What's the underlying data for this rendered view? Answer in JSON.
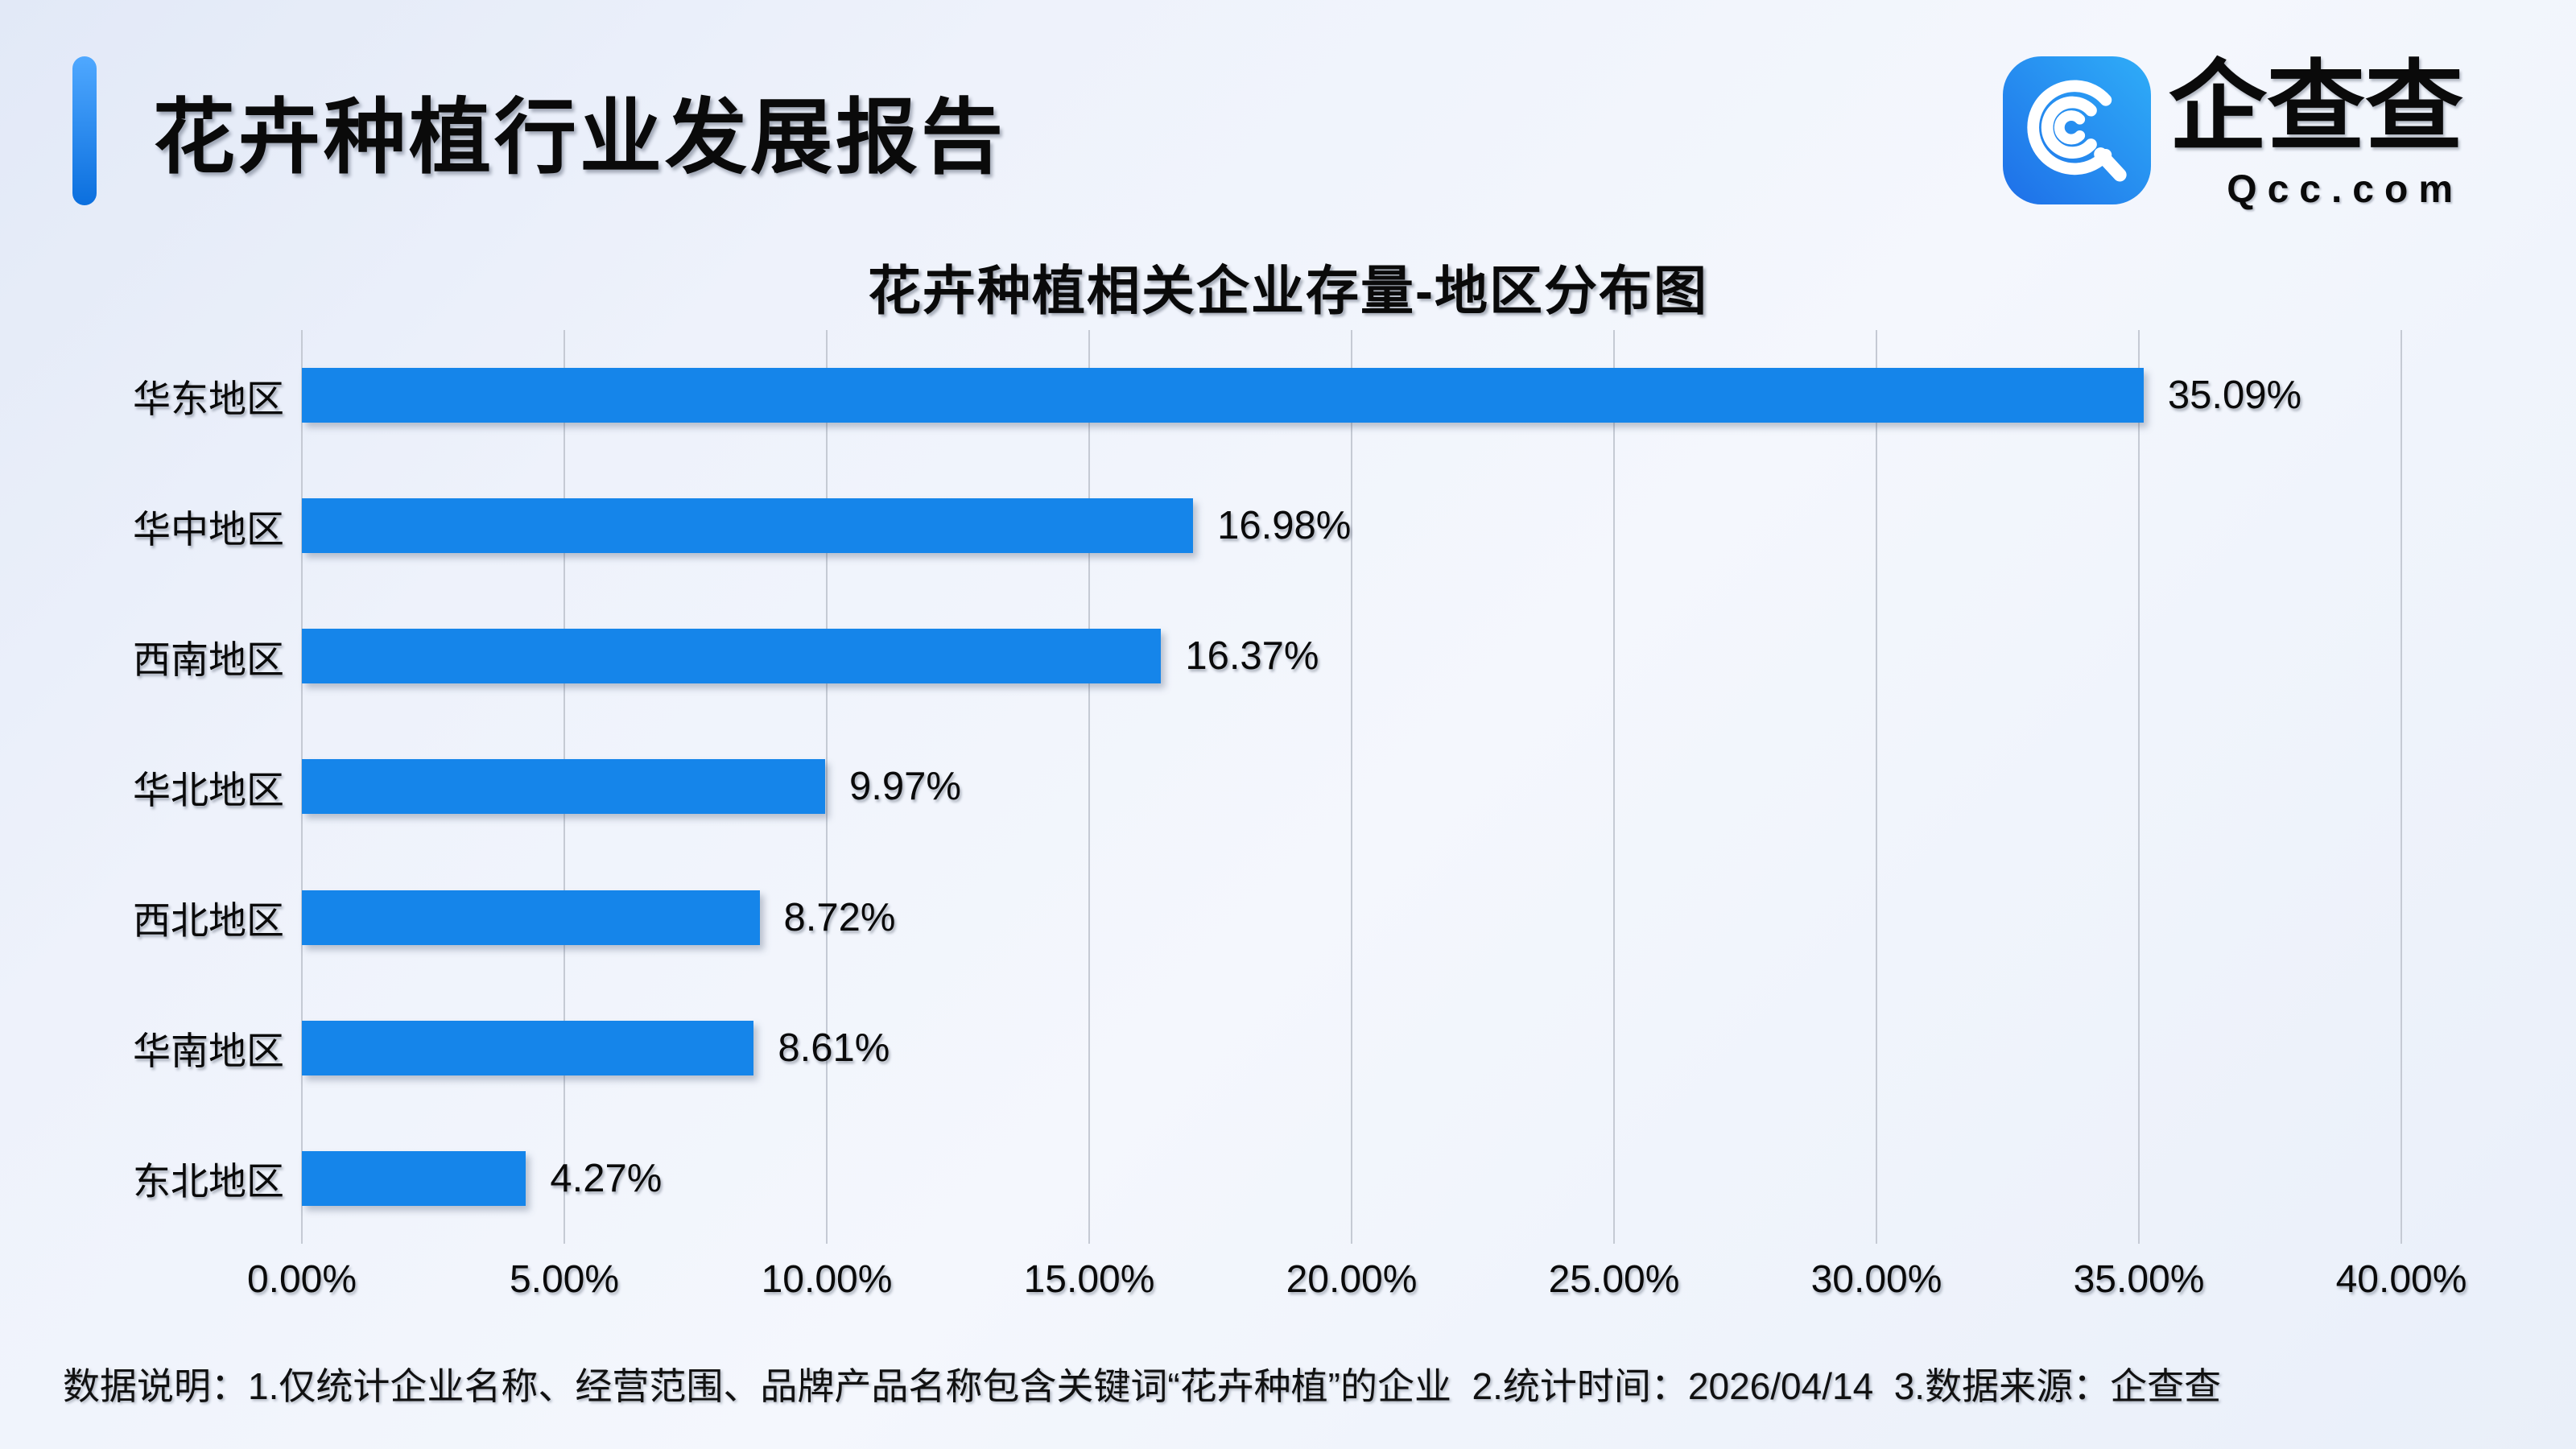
{
  "header": {
    "title": "花卉种植行业发展报告",
    "logo": {
      "brand_cn": "企查查",
      "brand_en": "Qcc.com",
      "icon": "qcc-magnifier-icon"
    }
  },
  "chart_data": {
    "type": "bar",
    "orientation": "horizontal",
    "title": "花卉种植相关企业存量-地区分布图",
    "categories": [
      "华东地区",
      "华中地区",
      "西南地区",
      "华北地区",
      "西北地区",
      "华南地区",
      "东北地区"
    ],
    "values": [
      35.09,
      16.98,
      16.37,
      9.97,
      8.72,
      8.61,
      4.27
    ],
    "value_labels": [
      "35.09%",
      "16.98%",
      "16.37%",
      "9.97%",
      "8.72%",
      "8.61%",
      "4.27%"
    ],
    "x_ticks": [
      "0.00%",
      "5.00%",
      "10.00%",
      "15.00%",
      "20.00%",
      "25.00%",
      "30.00%",
      "35.00%",
      "40.00%"
    ],
    "xlim": [
      0,
      40
    ],
    "grid": true,
    "legend": "none"
  },
  "colors": {
    "bar": "#1585EA",
    "gridline": "#c5cad4",
    "accent_bar_gradient": [
      "#4FA8FF",
      "#0B6FDE"
    ],
    "logo_gradient": [
      "#1E6FE8",
      "#2FADF8"
    ],
    "background": "#eef2fb"
  },
  "footer": {
    "note": "数据说明：1.仅统计企业名称、经营范围、品牌产品名称包含关键词“花卉种植”的企业  2.统计时间：2026/04/14  3.数据来源：企查查"
  }
}
